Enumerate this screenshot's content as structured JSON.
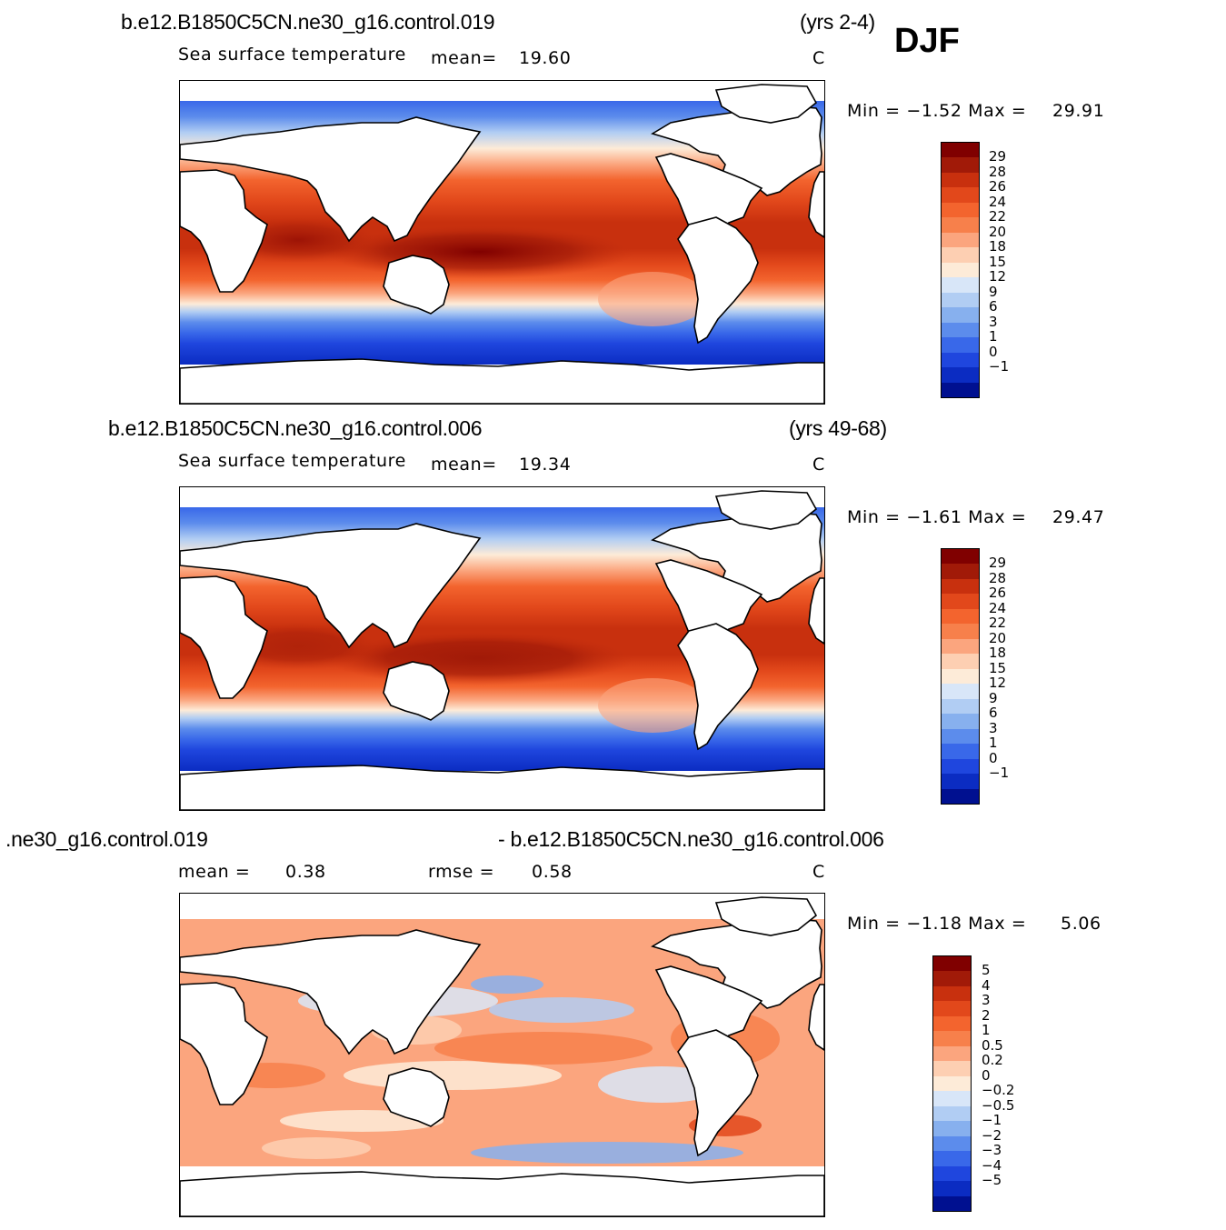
{
  "season": "DJF",
  "panels": [
    {
      "case_left": "b.e12.B1850C5CN.ne30_g16.control.019",
      "case_right": "(yrs 2-4)",
      "variable": "Sea surface temperature",
      "stat1_label": "mean=",
      "stat1_value": "19.60",
      "units": "C",
      "minmax_label": "Min =  −1.52 Max =",
      "max_value": "29.91",
      "colorbar_labels": [
        "29",
        "28",
        "26",
        "24",
        "22",
        "20",
        "18",
        "15",
        "12",
        "9",
        "6",
        "3",
        "1",
        "0",
        "−1"
      ],
      "colors": [
        "#800000",
        "#a11a08",
        "#c8300e",
        "#e2481b",
        "#f3642e",
        "#f7804b",
        "#fba57e",
        "#fdcfb2",
        "#fdebd8",
        "#d8e6f8",
        "#b1cdf3",
        "#87b0ee",
        "#5c8cec",
        "#3968e9",
        "#1f46de",
        "#0b2cc2",
        "#001090"
      ]
    },
    {
      "case_left": "b.e12.B1850C5CN.ne30_g16.control.006",
      "case_right": "(yrs 49-68)",
      "variable": "Sea surface temperature",
      "stat1_label": "mean=",
      "stat1_value": "19.34",
      "units": "C",
      "minmax_label": "Min =  −1.61 Max =",
      "max_value": "29.47",
      "colorbar_labels": [
        "29",
        "28",
        "26",
        "24",
        "22",
        "20",
        "18",
        "15",
        "12",
        "9",
        "6",
        "3",
        "1",
        "0",
        "−1"
      ],
      "colors": [
        "#800000",
        "#a11a08",
        "#c8300e",
        "#e2481b",
        "#f3642e",
        "#f7804b",
        "#fba57e",
        "#fdcfb2",
        "#fdebd8",
        "#d8e6f8",
        "#b1cdf3",
        "#87b0ee",
        "#5c8cec",
        "#3968e9",
        "#1f46de",
        "#0b2cc2",
        "#001090"
      ]
    },
    {
      "case_left": ".ne30_g16.control.019",
      "case_right": "- b.e12.B1850C5CN.ne30_g16.control.006",
      "stat1_label": "mean  =",
      "stat1_value": "0.38",
      "stat2_label": "rmse  =",
      "stat2_value": "0.58",
      "units": "C",
      "minmax_label": "Min =  −1.18 Max =",
      "max_value": "5.06",
      "colorbar_labels": [
        "5",
        "4",
        "3",
        "2",
        "1",
        "0.5",
        "0.2",
        "0",
        "−0.2",
        "−0.5",
        "−1",
        "−2",
        "−3",
        "−4",
        "−5"
      ],
      "colors": [
        "#800000",
        "#a11a08",
        "#c8300e",
        "#e2481b",
        "#f3642e",
        "#f7804b",
        "#fba57e",
        "#fdcfb2",
        "#fdebd8",
        "#d8e6f8",
        "#b1cdf3",
        "#87b0ee",
        "#5c8cec",
        "#3968e9",
        "#1f46de",
        "#0b2cc2",
        "#001090"
      ]
    }
  ]
}
